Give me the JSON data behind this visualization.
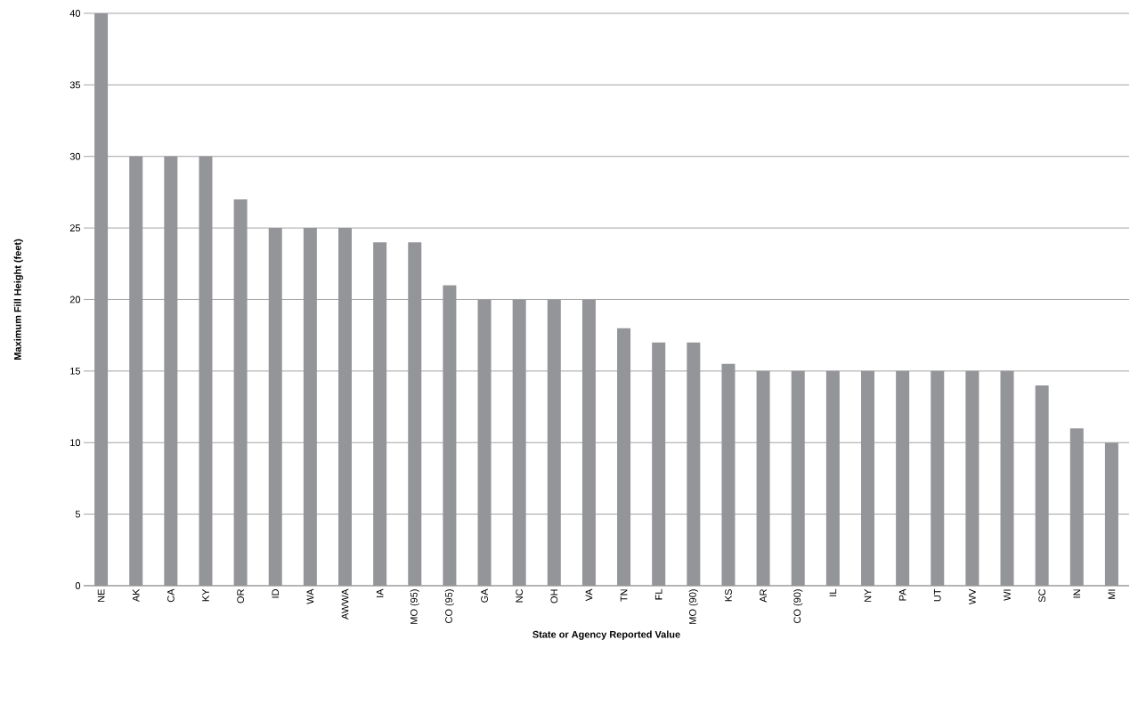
{
  "chart_data": {
    "type": "bar",
    "xlabel": "State or Agency Reported Value",
    "ylabel": "Maximum Fill Height (feet)",
    "categories": [
      "NE",
      "AK",
      "CA",
      "KY",
      "OR",
      "ID",
      "WA",
      "AWWA",
      "IA",
      "MO (95)",
      "CO (95)",
      "GA",
      "NC",
      "OH",
      "VA",
      "TN",
      "FL",
      "MO (90)",
      "KS",
      "AR",
      "CO (90)",
      "IL",
      "NY",
      "PA",
      "UT",
      "WV",
      "WI",
      "SC",
      "IN",
      "MI"
    ],
    "values": [
      40,
      30,
      30,
      30,
      27,
      25,
      25,
      25,
      24,
      24,
      21,
      20,
      20,
      20,
      20,
      18,
      17,
      17,
      15.5,
      15,
      15,
      15,
      15,
      15,
      15,
      15,
      15,
      14,
      11,
      10
    ],
    "color": "#939598",
    "ylim": [
      0,
      40
    ],
    "yticks": [
      0,
      5,
      10,
      15,
      20,
      25,
      30,
      35,
      40
    ],
    "grid": "y"
  }
}
